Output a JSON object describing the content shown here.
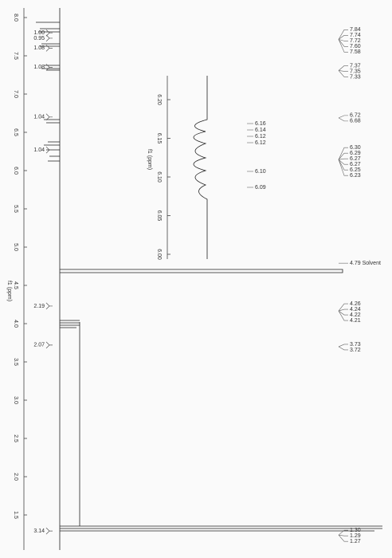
{
  "axis": {
    "label": "f1 (ppm)",
    "ticks": [
      "8.0",
      "7.5",
      "7.0",
      "6.5",
      "6.0",
      "5.5",
      "5.0",
      "4.5",
      "4.0",
      "3.5",
      "3.0",
      "2.5",
      "2.0",
      "1.5"
    ]
  },
  "integrals": [
    {
      "label": "1.00",
      "at": "7.80"
    },
    {
      "label": "0.95",
      "at": "7.73"
    },
    {
      "label": "1.08",
      "at": "7.60"
    },
    {
      "label": "1.08",
      "at": "7.35"
    },
    {
      "label": "1.04",
      "at": "6.70"
    },
    {
      "label": "1.04",
      "at": "6.27"
    },
    {
      "label": "2.19",
      "at": "4.23"
    },
    {
      "label": "2.07",
      "at": "3.72"
    },
    {
      "label": "3.14",
      "at": "1.29"
    }
  ],
  "peak_groups": [
    [
      "7.84",
      "7.74",
      "7.72",
      "7.60",
      "7.58"
    ],
    [
      "7.37",
      "7.35",
      "7.33"
    ],
    [
      "6.72",
      "6.68"
    ],
    [
      "6.30",
      "6.29",
      "6.27",
      "6.27",
      "6.25",
      "6.23"
    ],
    [
      "4.79 Solvent"
    ],
    [
      "4.26",
      "4.24",
      "4.22",
      "4.21"
    ],
    [
      "3.73",
      "3.72"
    ],
    [
      "1.30",
      "1.29",
      "1.27"
    ]
  ],
  "inset": {
    "label": "f1 (ppm)",
    "ticks": [
      "6.20",
      "6.15",
      "6.10",
      "6.05",
      "6.00"
    ],
    "peaks": [
      [
        "6.16",
        "6.14",
        "6.12",
        "6.12"
      ],
      [
        "6.10"
      ],
      [
        "6.09"
      ]
    ]
  }
}
